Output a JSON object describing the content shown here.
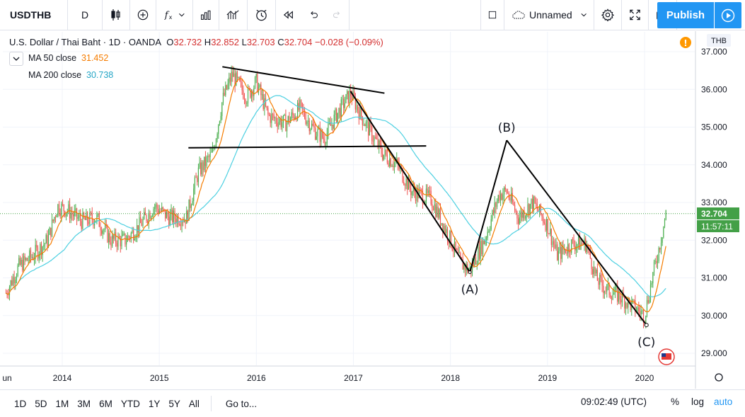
{
  "toolbar": {
    "symbol": "USDTHB",
    "interval": "D",
    "layout_name": "Unnamed",
    "publish_label": "Publish"
  },
  "legend": {
    "title": "U.S. Dollar / Thai Baht · 1D · OANDA",
    "o_key": "O",
    "o_val": "32.732",
    "h_key": "H",
    "h_val": "32.852",
    "l_key": "L",
    "l_val": "32.703",
    "c_key": "C",
    "c_val": "32.704",
    "change": "−0.028 (−0.09%)",
    "ma50_label": "MA 50 close",
    "ma50_value": "31.452",
    "ma200_label": "MA 200 close",
    "ma200_value": "30.738"
  },
  "price_axis": {
    "currency": "THB",
    "last_price": "32.704",
    "countdown": "11:57:11",
    "ticks": [
      "37.000",
      "36.000",
      "35.000",
      "34.000",
      "33.000",
      "32.000",
      "31.000",
      "30.000",
      "29.000"
    ]
  },
  "time_axis": {
    "first_label": "un",
    "ticks": [
      "2014",
      "2015",
      "2016",
      "2017",
      "2018",
      "2019",
      "2020"
    ]
  },
  "annotations": {
    "a": "(A)",
    "b": "(B)",
    "c": "(C)"
  },
  "bottom": {
    "ranges": [
      "1D",
      "5D",
      "1M",
      "3M",
      "6M",
      "YTD",
      "1Y",
      "5Y",
      "All"
    ],
    "goto": "Go to...",
    "clock": "09:02:49 (UTC)",
    "pct": "%",
    "log": "log",
    "auto": "auto"
  },
  "colors": {
    "up": "#4caf50",
    "down": "#ef5350",
    "ma50": "#f57c00",
    "ma200": "#4dd0e1",
    "last_price": "#43a047",
    "accent": "#2196f3"
  },
  "chart_data": {
    "type": "candlestick",
    "title": "U.S. Dollar / Thai Baht · 1D · OANDA",
    "ylim": [
      28.6,
      37.3
    ],
    "y_ticks": [
      29,
      30,
      31,
      32,
      33,
      34,
      35,
      36,
      37
    ],
    "x_ticks": [
      "2014",
      "2015",
      "2016",
      "2017",
      "2018",
      "2019",
      "2020"
    ],
    "close_series": [
      {
        "t": 2013.42,
        "v": 30.6
      },
      {
        "t": 2013.55,
        "v": 31.3
      },
      {
        "t": 2013.7,
        "v": 31.6
      },
      {
        "t": 2013.85,
        "v": 32.0
      },
      {
        "t": 2013.95,
        "v": 32.9
      },
      {
        "t": 2014.05,
        "v": 32.8
      },
      {
        "t": 2014.2,
        "v": 32.5
      },
      {
        "t": 2014.35,
        "v": 32.6
      },
      {
        "t": 2014.5,
        "v": 32.0
      },
      {
        "t": 2014.65,
        "v": 32.0
      },
      {
        "t": 2014.8,
        "v": 32.4
      },
      {
        "t": 2014.95,
        "v": 32.9
      },
      {
        "t": 2015.1,
        "v": 32.6
      },
      {
        "t": 2015.28,
        "v": 32.6
      },
      {
        "t": 2015.4,
        "v": 33.8
      },
      {
        "t": 2015.55,
        "v": 34.3
      },
      {
        "t": 2015.65,
        "v": 35.7
      },
      {
        "t": 2015.75,
        "v": 36.4
      },
      {
        "t": 2015.9,
        "v": 35.8
      },
      {
        "t": 2016.0,
        "v": 36.2
      },
      {
        "t": 2016.12,
        "v": 35.3
      },
      {
        "t": 2016.3,
        "v": 35.1
      },
      {
        "t": 2016.45,
        "v": 35.5
      },
      {
        "t": 2016.6,
        "v": 34.9
      },
      {
        "t": 2016.7,
        "v": 34.7
      },
      {
        "t": 2016.82,
        "v": 35.3
      },
      {
        "t": 2016.97,
        "v": 35.9
      },
      {
        "t": 2017.1,
        "v": 35.2
      },
      {
        "t": 2017.3,
        "v": 34.3
      },
      {
        "t": 2017.45,
        "v": 34.0
      },
      {
        "t": 2017.6,
        "v": 33.3
      },
      {
        "t": 2017.8,
        "v": 33.1
      },
      {
        "t": 2018.0,
        "v": 32.0
      },
      {
        "t": 2018.1,
        "v": 31.4
      },
      {
        "t": 2018.2,
        "v": 31.2
      },
      {
        "t": 2018.35,
        "v": 32.0
      },
      {
        "t": 2018.5,
        "v": 33.2
      },
      {
        "t": 2018.58,
        "v": 33.3
      },
      {
        "t": 2018.7,
        "v": 32.6
      },
      {
        "t": 2018.85,
        "v": 33.0
      },
      {
        "t": 2019.0,
        "v": 32.4
      },
      {
        "t": 2019.1,
        "v": 31.6
      },
      {
        "t": 2019.25,
        "v": 31.9
      },
      {
        "t": 2019.4,
        "v": 31.9
      },
      {
        "t": 2019.5,
        "v": 31.0
      },
      {
        "t": 2019.6,
        "v": 30.7
      },
      {
        "t": 2019.75,
        "v": 30.5
      },
      {
        "t": 2019.9,
        "v": 30.2
      },
      {
        "t": 2020.0,
        "v": 30.0
      },
      {
        "t": 2020.08,
        "v": 31.0
      },
      {
        "t": 2020.15,
        "v": 31.8
      },
      {
        "t": 2020.22,
        "v": 32.7
      }
    ],
    "series": [
      {
        "name": "MA 50 close",
        "last_value": 31.452
      },
      {
        "name": "MA 200 close",
        "last_value": 30.738
      }
    ],
    "wave_points": {
      "A": {
        "t": 2018.2,
        "v": 31.15
      },
      "B": {
        "t": 2018.58,
        "v": 34.65
      },
      "C": {
        "t": 2020.02,
        "v": 29.75
      }
    },
    "trendlines": [
      {
        "from": {
          "t": 2015.65,
          "v": 36.6
        },
        "to": {
          "t": 2017.32,
          "v": 35.9
        }
      },
      {
        "from": {
          "t": 2015.3,
          "v": 34.45
        },
        "to": {
          "t": 2017.75,
          "v": 34.5
        }
      }
    ],
    "last_price": 32.704
  }
}
